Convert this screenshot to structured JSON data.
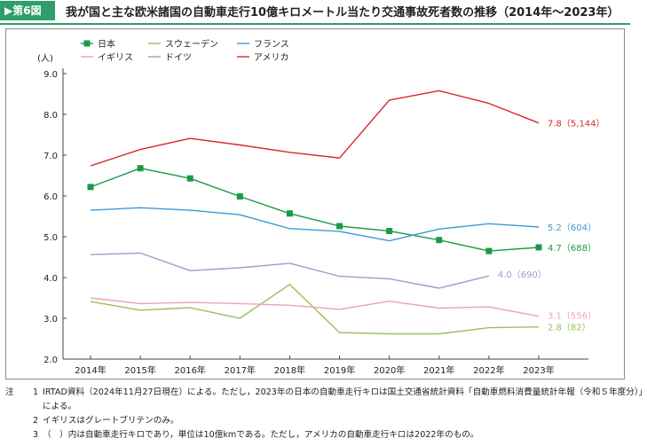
{
  "figure": {
    "badge": "▶第6図",
    "title": "我が国と主な欧米諸国の自動車走行10億キロメートル当たり交通事故死者数の推移（2014年〜2023年）"
  },
  "notes": {
    "head": "注",
    "items": [
      {
        "num": "1",
        "text": "IRTAD資料（2024年11月27日現在）による。ただし，2023年の日本の自動車走行キロは国土交通省統計資料「自動車燃料消費量統計年報（令和５年度分）」"
      },
      {
        "num": "",
        "text": "による。"
      },
      {
        "num": "2",
        "text": "イギリスはグレートブリテンのみ。"
      },
      {
        "num": "3",
        "text": "（　）内は自動車走行キロであり，単位は10億kmである。ただし，アメリカの自動車走行キロは2022年のもの。"
      }
    ]
  },
  "chart_data": {
    "type": "line",
    "ylabel": "(人)",
    "ylim": [
      2.0,
      9.0
    ],
    "yticks": [
      "2.0",
      "3.0",
      "4.0",
      "5.0",
      "6.0",
      "7.0",
      "8.0",
      "9.0"
    ],
    "categories": [
      "2014年",
      "2015年",
      "2016年",
      "2017年",
      "2018年",
      "2019年",
      "2020年",
      "2021年",
      "2022年",
      "2023年"
    ],
    "grid": false,
    "legend_position": "top-left",
    "series": [
      {
        "name": "日本",
        "color": "#1a9a48",
        "marker": "square",
        "values": [
          6.22,
          6.68,
          6.43,
          5.99,
          5.57,
          5.26,
          5.14,
          4.92,
          4.65,
          4.74
        ],
        "end_label": "4.7（688）"
      },
      {
        "name": "スウェーデン",
        "color": "#94c35a",
        "marker": "none",
        "values": [
          3.41,
          3.2,
          3.26,
          3.0,
          3.83,
          2.65,
          2.62,
          2.62,
          2.77,
          2.79
        ],
        "end_label": "2.8（82）"
      },
      {
        "name": "フランス",
        "color": "#3e9bd6",
        "marker": "none",
        "values": [
          5.65,
          5.71,
          5.65,
          5.54,
          5.2,
          5.13,
          4.9,
          5.19,
          5.32,
          5.24
        ],
        "end_label": "5.2（604）"
      },
      {
        "name": "イギリス",
        "color": "#eea0b9",
        "marker": "none",
        "values": [
          3.5,
          3.36,
          3.39,
          3.36,
          3.32,
          3.22,
          3.42,
          3.25,
          3.28,
          3.05
        ],
        "end_label": "3.1（556）"
      },
      {
        "name": "ドイツ",
        "color": "#a09cc6",
        "marker": "none",
        "values": [
          4.56,
          4.6,
          4.17,
          4.24,
          4.35,
          4.03,
          3.97,
          3.74,
          4.04,
          null
        ],
        "end_label": "4.0（690）"
      },
      {
        "name": "アメリカ",
        "color": "#d8262b",
        "marker": "none",
        "values": [
          6.74,
          7.14,
          7.41,
          7.25,
          7.07,
          6.93,
          8.35,
          8.58,
          8.27,
          7.79
        ],
        "end_label": "7.8（5,144）"
      }
    ]
  }
}
